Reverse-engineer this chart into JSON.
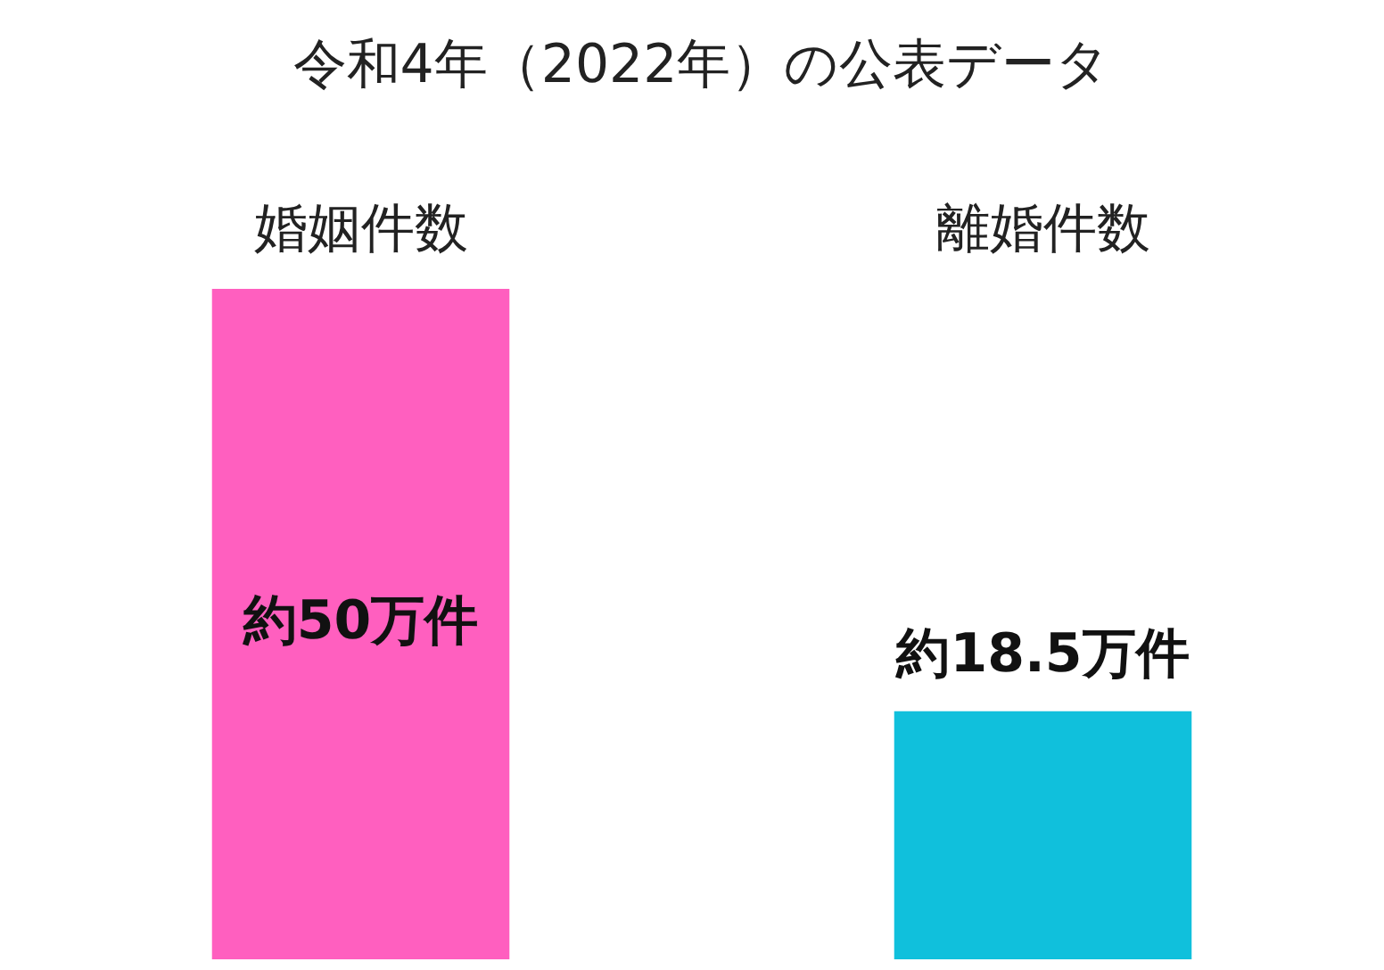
{
  "chart_data": {
    "type": "bar",
    "title": "令和4年（2022年）の公表データ",
    "categories": [
      "婚姻件数",
      "離婚件数"
    ],
    "values": [
      50,
      18.5
    ],
    "colors": [
      "#ff5fbf",
      "#10c0dc"
    ],
    "value_labels": [
      "約50万件",
      "約18.5万件"
    ],
    "legend": false,
    "grid": false
  }
}
